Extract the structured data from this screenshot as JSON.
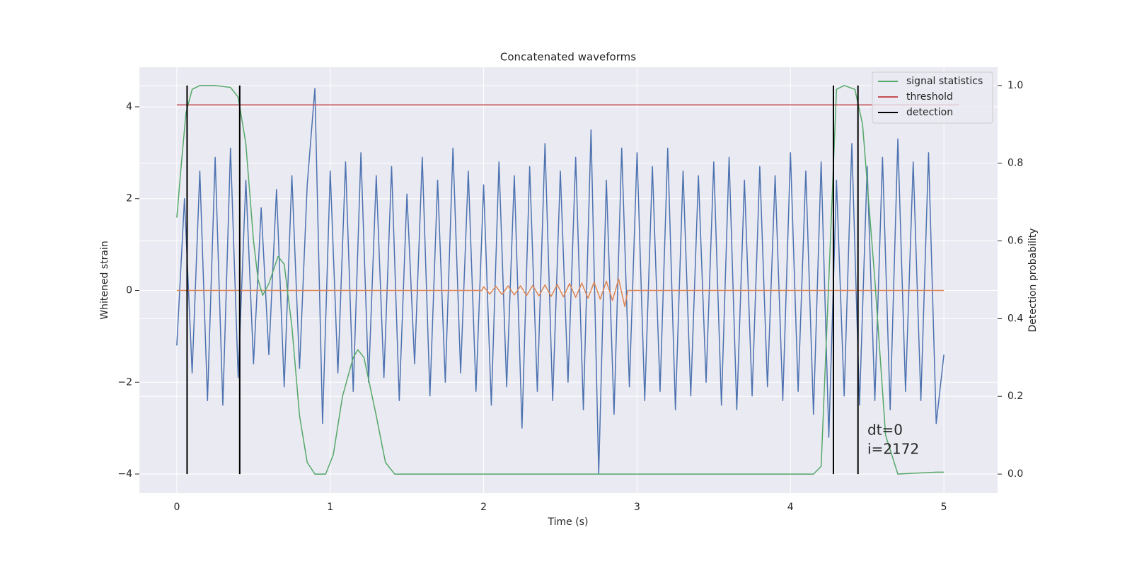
{
  "chart_data": {
    "type": "line",
    "title": "Concatenated waveforms",
    "x_label": "Time (s)",
    "y_label": "Whitened strain",
    "y2_label": "Detection probability",
    "xlim": [
      -0.244,
      5.35
    ],
    "ylim": [
      -4.416,
      4.863
    ],
    "y2lim": [
      -0.049,
      1.047
    ],
    "xticks": [
      0,
      1,
      2,
      3,
      4,
      5
    ],
    "yticks": [
      {
        "value": -4,
        "label": "−4"
      },
      {
        "value": -2,
        "label": "−2"
      },
      0,
      2,
      4
    ],
    "y2ticks": [
      {
        "value": 0,
        "label": "0.0"
      },
      0.2,
      0.4,
      0.6,
      0.8,
      {
        "value": 1,
        "label": "1.0"
      }
    ],
    "grid": true,
    "legend": "upper right",
    "background": "#eaeaf2",
    "annotations": [
      "dt=0",
      "i=2172"
    ],
    "series": [
      {
        "color": "#4c72b0",
        "axis": "y",
        "style": "line",
        "x": [
          0,
          0.05,
          0.1,
          0.15,
          0.2,
          0.25,
          0.3,
          0.35,
          0.4,
          0.45,
          0.5,
          0.55,
          0.6,
          0.65,
          0.7,
          0.75,
          0.8,
          0.85,
          0.9,
          0.95,
          1,
          1.05,
          1.1,
          1.15,
          1.2,
          1.25,
          1.3,
          1.35,
          1.4,
          1.45,
          1.5,
          1.55,
          1.6,
          1.65,
          1.7,
          1.75,
          1.8,
          1.85,
          1.9,
          1.95,
          2,
          2.05,
          2.1,
          2.15,
          2.2,
          2.25,
          2.3,
          2.35,
          2.4,
          2.45,
          2.5,
          2.55,
          2.6,
          2.65,
          2.7,
          2.75,
          2.8,
          2.85,
          2.9,
          2.95,
          3,
          3.05,
          3.1,
          3.15,
          3.2,
          3.25,
          3.3,
          3.35,
          3.4,
          3.45,
          3.5,
          3.55,
          3.6,
          3.65,
          3.7,
          3.75,
          3.8,
          3.85,
          3.9,
          3.95,
          4,
          4.05,
          4.1,
          4.15,
          4.2,
          4.25,
          4.3,
          4.35,
          4.4,
          4.45,
          4.5,
          4.55,
          4.6,
          4.65,
          4.7,
          4.75,
          4.8,
          4.85,
          4.9,
          4.95,
          5
        ],
        "values": [
          -1.2,
          2.0,
          -1.8,
          2.6,
          -2.4,
          2.9,
          -2.5,
          3.1,
          -1.9,
          2.4,
          -1.6,
          1.8,
          -1.4,
          2.2,
          -2.1,
          2.5,
          -1.7,
          2.3,
          4.4,
          -2.9,
          2.6,
          -1.8,
          2.8,
          -2.2,
          3.0,
          -2.0,
          2.5,
          -1.9,
          2.7,
          -2.4,
          2.1,
          -1.6,
          2.9,
          -2.3,
          2.4,
          -2.0,
          3.1,
          -1.8,
          2.6,
          -2.2,
          2.3,
          -2.5,
          2.8,
          -2.1,
          2.5,
          -3.0,
          2.7,
          -2.2,
          3.2,
          -2.4,
          2.6,
          -2.0,
          2.9,
          -2.6,
          3.5,
          -4.0,
          2.4,
          -2.7,
          3.1,
          -2.1,
          3.0,
          -2.4,
          2.7,
          -2.2,
          3.1,
          -2.6,
          2.6,
          -2.3,
          2.5,
          -2.0,
          2.8,
          -2.5,
          2.9,
          -2.6,
          2.4,
          -2.3,
          2.7,
          -2.1,
          2.5,
          -2.4,
          3.0,
          -2.2,
          2.6,
          -2.7,
          2.8,
          -3.2,
          2.4,
          -2.3,
          3.2,
          -2.5,
          2.7,
          -2.4,
          2.9,
          -2.6,
          3.3,
          -2.2,
          2.8,
          -2.4,
          3.0,
          -2.9,
          -1.4
        ]
      },
      {
        "color": "#dd8452",
        "axis": "y",
        "style": "line",
        "x": [
          0,
          1.99,
          2,
          2.04,
          2.08,
          2.12,
          2.16,
          2.2,
          2.24,
          2.28,
          2.32,
          2.36,
          2.4,
          2.44,
          2.48,
          2.52,
          2.56,
          2.6,
          2.64,
          2.68,
          2.72,
          2.76,
          2.8,
          2.84,
          2.88,
          2.92,
          2.94,
          5
        ],
        "values": [
          0,
          0,
          0.08,
          -0.08,
          0.09,
          -0.09,
          0.1,
          -0.1,
          0.1,
          -0.11,
          0.11,
          -0.12,
          0.12,
          -0.13,
          0.13,
          -0.14,
          0.15,
          -0.15,
          0.16,
          -0.17,
          0.18,
          -0.19,
          0.2,
          -0.22,
          0.25,
          -0.35,
          0,
          0
        ]
      },
      {
        "name": "signal statistics",
        "color": "#55a868",
        "axis": "y2",
        "style": "line",
        "x": [
          0,
          0.03,
          0.06,
          0.1,
          0.15,
          0.25,
          0.35,
          0.4,
          0.45,
          0.5,
          0.53,
          0.56,
          0.6,
          0.66,
          0.7,
          0.75,
          0.8,
          0.85,
          0.9,
          0.97,
          1.02,
          1.08,
          1.15,
          1.18,
          1.22,
          1.3,
          1.36,
          1.42,
          2.5,
          4.15,
          4.2,
          4.25,
          4.3,
          4.35,
          4.42,
          4.47,
          4.55,
          4.62,
          4.7,
          4.95,
          5
        ],
        "values": [
          0.66,
          0.8,
          0.93,
          0.99,
          1.0,
          1.0,
          0.995,
          0.97,
          0.85,
          0.6,
          0.5,
          0.46,
          0.49,
          0.56,
          0.54,
          0.38,
          0.15,
          0.03,
          0.0,
          0.0,
          0.05,
          0.2,
          0.3,
          0.32,
          0.3,
          0.15,
          0.03,
          0.0,
          0.0,
          0.0,
          0.02,
          0.5,
          0.99,
          1.0,
          0.99,
          0.9,
          0.5,
          0.1,
          0.0,
          0.005,
          0.005
        ]
      },
      {
        "name": "threshold",
        "color": "#c44e52",
        "axis": "y2",
        "style": "line",
        "x": [
          0,
          5.1
        ],
        "values": [
          0.95,
          0.95
        ]
      },
      {
        "name": "detection",
        "color": "#000000",
        "axis": "y2",
        "style": "vline",
        "x": [
          0.067,
          0.41,
          4.28,
          4.44
        ],
        "y_range": [
          0,
          1
        ]
      }
    ]
  }
}
